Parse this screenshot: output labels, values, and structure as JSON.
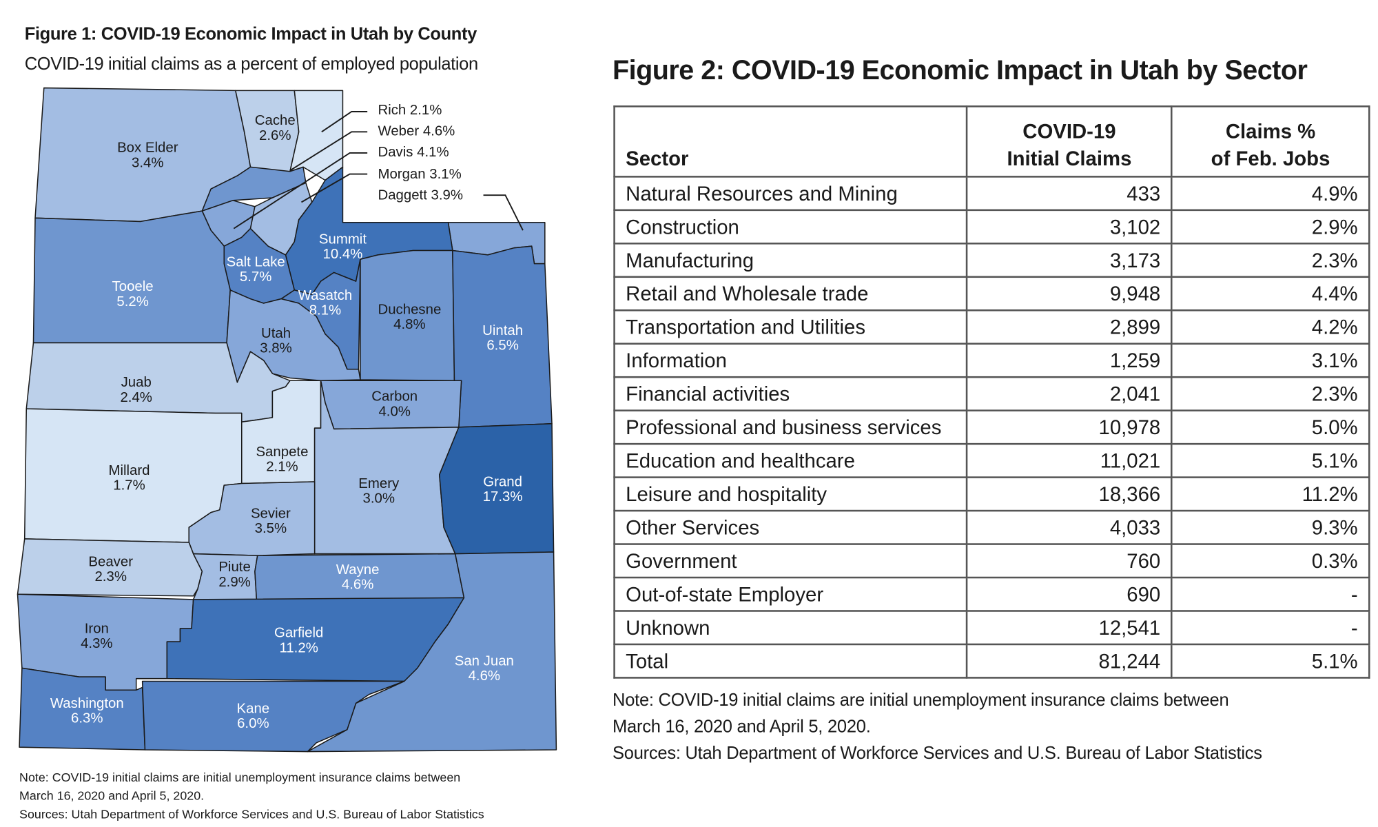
{
  "figure1": {
    "title": "Figure 1: COVID-19 Economic Impact in Utah by County",
    "subtitle": "COVID-19 initial claims as a percent of employed population",
    "note": "Note: COVID-19 initial claims are initial unemployment insurance claims between",
    "note2": "March 16, 2020 and April 5, 2020.",
    "sources": "Sources: Utah Department of Workforce Services and U.S. Bureau of Labor Statistics"
  },
  "chart_data": [
    {
      "type": "choropleth-map",
      "title": "Figure 1: COVID-19 Economic Impact in Utah by County",
      "subtitle": "COVID-19 initial claims as a percent of employed population",
      "counties": [
        {
          "name": "Box Elder",
          "label": "3.4%",
          "value": 3.4,
          "color": "#a3bde3"
        },
        {
          "name": "Cache",
          "label": "2.6%",
          "value": 2.6,
          "color": "#bcd0ea"
        },
        {
          "name": "Rich",
          "label": "2.1%",
          "value": 2.1,
          "color": "#d6e5f5"
        },
        {
          "name": "Weber",
          "label": "4.6%",
          "value": 4.6,
          "color": "#6f96cf"
        },
        {
          "name": "Davis",
          "label": "4.1%",
          "value": 4.1,
          "color": "#86a7d9"
        },
        {
          "name": "Morgan",
          "label": "3.1%",
          "value": 3.1,
          "color": "#a3bde3"
        },
        {
          "name": "Daggett",
          "label": "3.9%",
          "value": 3.9,
          "color": "#86a7d9"
        },
        {
          "name": "Summit",
          "label": "10.4%",
          "value": 10.4,
          "color": "#3e72b8"
        },
        {
          "name": "Salt Lake",
          "label": "5.7%",
          "value": 5.7,
          "color": "#5582c4"
        },
        {
          "name": "Tooele",
          "label": "5.2%",
          "value": 5.2,
          "color": "#6f96cf"
        },
        {
          "name": "Wasatch",
          "label": "8.1%",
          "value": 8.1,
          "color": "#5582c4"
        },
        {
          "name": "Duchesne",
          "label": "4.8%",
          "value": 4.8,
          "color": "#6f96cf"
        },
        {
          "name": "Uintah",
          "label": "6.5%",
          "value": 6.5,
          "color": "#5582c4"
        },
        {
          "name": "Utah",
          "label": "3.8%",
          "value": 3.8,
          "color": "#86a7d9"
        },
        {
          "name": "Juab",
          "label": "2.4%",
          "value": 2.4,
          "color": "#bcd0ea"
        },
        {
          "name": "Carbon",
          "label": "4.0%",
          "value": 4.0,
          "color": "#86a7d9"
        },
        {
          "name": "Millard",
          "label": "1.7%",
          "value": 1.7,
          "color": "#d6e5f5"
        },
        {
          "name": "Sanpete",
          "label": "2.1%",
          "value": 2.1,
          "color": "#d6e5f5"
        },
        {
          "name": "Emery",
          "label": "3.0%",
          "value": 3.0,
          "color": "#a3bde3"
        },
        {
          "name": "Grand",
          "label": "17.3%",
          "value": 17.3,
          "color": "#2b62a8"
        },
        {
          "name": "Sevier",
          "label": "3.5%",
          "value": 3.5,
          "color": "#a3bde3"
        },
        {
          "name": "Beaver",
          "label": "2.3%",
          "value": 2.3,
          "color": "#bcd0ea"
        },
        {
          "name": "Piute",
          "label": "2.9%",
          "value": 2.9,
          "color": "#a3bde3"
        },
        {
          "name": "Wayne",
          "label": "4.6%",
          "value": 4.6,
          "color": "#6f96cf"
        },
        {
          "name": "Iron",
          "label": "4.3%",
          "value": 4.3,
          "color": "#86a7d9"
        },
        {
          "name": "Garfield",
          "label": "11.2%",
          "value": 11.2,
          "color": "#3e72b8"
        },
        {
          "name": "San Juan",
          "label": "4.6%",
          "value": 4.6,
          "color": "#6f96cf"
        },
        {
          "name": "Washington",
          "label": "6.3%",
          "value": 6.3,
          "color": "#5582c4"
        },
        {
          "name": "Kane",
          "label": "6.0%",
          "value": 6.0,
          "color": "#5582c4"
        }
      ]
    },
    {
      "type": "table",
      "title": "Figure 2: COVID-19 Economic Impact in Utah by Sector",
      "columns": [
        "Sector",
        "COVID-19 Initial Claims",
        "Claims % of Feb. Jobs"
      ],
      "rows": [
        [
          "Natural Resources and Mining",
          "433",
          "4.9%"
        ],
        [
          "Construction",
          "3,102",
          "2.9%"
        ],
        [
          "Manufacturing",
          "3,173",
          "2.3%"
        ],
        [
          "Retail and Wholesale trade",
          "9,948",
          "4.4%"
        ],
        [
          "Transportation and Utilities",
          "2,899",
          "4.2%"
        ],
        [
          "Information",
          "1,259",
          "3.1%"
        ],
        [
          "Financial activities",
          "2,041",
          "2.3%"
        ],
        [
          "Professional and business services",
          "10,978",
          "5.0%"
        ],
        [
          "Education and healthcare",
          "11,021",
          "5.1%"
        ],
        [
          "Leisure and hospitality",
          "18,366",
          "11.2%"
        ],
        [
          "Other Services",
          "4,033",
          "9.3%"
        ],
        [
          "Government",
          "760",
          "0.3%"
        ],
        [
          "Out-of-state Employer",
          "690",
          "-"
        ],
        [
          "Unknown",
          "12,541",
          "-"
        ],
        [
          "Total",
          "81,244",
          "5.1%"
        ]
      ]
    }
  ],
  "figure2": {
    "title": "Figure 2: COVID-19 Economic Impact in Utah by Sector",
    "header": {
      "c0": "Sector",
      "c1a": "COVID-19",
      "c1b": "Initial Claims",
      "c2a": "Claims %",
      "c2b": "of Feb. Jobs"
    },
    "note": "Note: COVID-19 initial claims are initial unemployment insurance claims between",
    "note2": "March 16, 2020 and April 5, 2020.",
    "sources": "Sources: Utah Department of Workforce Services and U.S. Bureau of Labor Statistics"
  }
}
